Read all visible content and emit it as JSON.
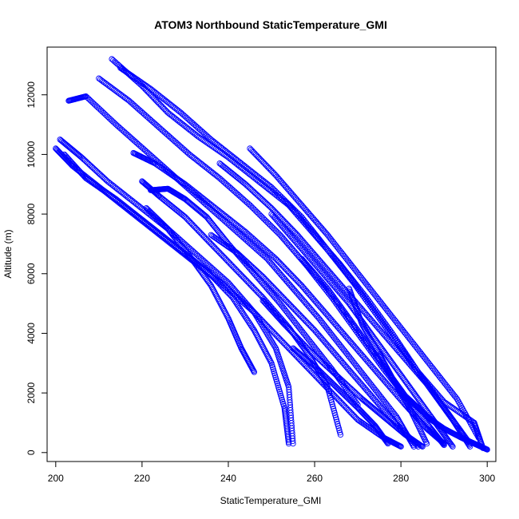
{
  "chart_data": {
    "type": "scatter",
    "title": "ATOM3 Northbound StaticTemperature_GMI",
    "xlabel": "StaticTemperature_GMI",
    "ylabel": "Altitude (m)",
    "xlim": [
      198,
      302
    ],
    "ylim": [
      -300,
      13600
    ],
    "xticks": [
      200,
      220,
      240,
      260,
      280,
      300
    ],
    "yticks": [
      0,
      2000,
      4000,
      6000,
      8000,
      10000,
      12000
    ],
    "marker": "open-circle",
    "grid": false,
    "legend": "none",
    "colors": {
      "points": "#0000ff"
    },
    "series": [
      {
        "x": [
          213,
          220,
          226,
          233,
          240,
          247,
          254,
          260,
          266,
          272,
          278,
          284,
          290,
          297,
          299
        ],
        "y": [
          13200,
          12300,
          11400,
          10600,
          9900,
          9100,
          8300,
          7300,
          6300,
          5200,
          4000,
          2700,
          1700,
          1000,
          150
        ]
      },
      {
        "x": [
          215,
          222,
          229,
          236,
          243,
          250,
          257,
          263,
          269,
          275,
          281,
          287,
          292,
          296
        ],
        "y": [
          12900,
          12200,
          11400,
          10500,
          9700,
          8900,
          7900,
          6800,
          5700,
          4500,
          3300,
          2100,
          1100,
          200
        ]
      },
      {
        "x": [
          210,
          217,
          224,
          231,
          238,
          245,
          252,
          258,
          264,
          270,
          276,
          282,
          287,
          290
        ],
        "y": [
          12550,
          11800,
          10900,
          10000,
          9200,
          8300,
          7300,
          6300,
          5200,
          4000,
          2800,
          1700,
          800,
          250
        ]
      },
      {
        "x": [
          203,
          207,
          214,
          221,
          228,
          235,
          242,
          249,
          255,
          261,
          267,
          273,
          279,
          283
        ],
        "y": [
          11800,
          11950,
          11000,
          10100,
          9200,
          8300,
          7400,
          6500,
          5500,
          4500,
          3400,
          2300,
          1200,
          200
        ]
      },
      {
        "x": [
          200,
          204,
          211,
          218,
          225,
          232,
          239,
          246,
          252,
          258,
          264,
          270,
          276,
          280
        ],
        "y": [
          10200,
          9600,
          8800,
          8000,
          7200,
          6400,
          5600,
          4700,
          3800,
          2900,
          2000,
          1100,
          500,
          200
        ]
      },
      {
        "x": [
          201,
          206,
          212,
          219,
          226,
          233,
          240,
          246,
          251,
          254,
          255
        ],
        "y": [
          10500,
          9900,
          9100,
          8300,
          7500,
          6600,
          5700,
          4700,
          3500,
          2200,
          300
        ]
      },
      {
        "x": [
          202,
          207,
          214,
          221,
          228,
          235,
          241,
          246,
          250,
          253,
          254
        ],
        "y": [
          10000,
          9200,
          8500,
          7700,
          6900,
          6100,
          5200,
          4100,
          3000,
          1500,
          300
        ]
      },
      {
        "x": [
          218,
          223,
          230,
          237,
          244,
          251,
          257,
          263,
          269,
          275,
          281,
          286,
          290
        ],
        "y": [
          10050,
          9700,
          9000,
          8200,
          7400,
          6500,
          5600,
          4600,
          3600,
          2600,
          1600,
          800,
          300
        ]
      },
      {
        "x": [
          220,
          224,
          230,
          236,
          242,
          248,
          254,
          259,
          263,
          266
        ],
        "y": [
          9100,
          8600,
          7900,
          7000,
          6100,
          5200,
          4200,
          3200,
          2200,
          600
        ]
      },
      {
        "x": [
          221,
          226,
          231,
          236,
          240,
          243,
          246
        ],
        "y": [
          8200,
          7500,
          6600,
          5600,
          4500,
          3500,
          2700
        ]
      },
      {
        "x": [
          236,
          242,
          248,
          254,
          260,
          266,
          272,
          278,
          284
        ],
        "y": [
          7300,
          6700,
          5900,
          5000,
          4100,
          3100,
          2100,
          1100,
          200
        ]
      },
      {
        "x": [
          222,
          226,
          230,
          235,
          240,
          246,
          252,
          258,
          264,
          270
        ],
        "y": [
          8800,
          8850,
          8500,
          7900,
          7000,
          6000,
          5000,
          3900,
          2800,
          1600
        ]
      },
      {
        "x": [
          238,
          244,
          250,
          256,
          262,
          268,
          274,
          280,
          286,
          291,
          296
        ],
        "y": [
          9700,
          9000,
          8200,
          7300,
          6300,
          5300,
          4300,
          3300,
          2300,
          1300,
          300
        ]
      },
      {
        "x": [
          245,
          251,
          257,
          263,
          269,
          275,
          281,
          287,
          293,
          298
        ],
        "y": [
          10200,
          9300,
          8300,
          7300,
          6200,
          5100,
          4000,
          2900,
          1800,
          500
        ]
      },
      {
        "x": [
          250,
          256,
          262,
          268,
          273,
          278,
          283,
          288,
          292
        ],
        "y": [
          8000,
          7000,
          6000,
          5000,
          4000,
          3000,
          2000,
          1000,
          200
        ]
      },
      {
        "x": [
          257,
          263,
          268,
          273,
          278,
          282,
          286
        ],
        "y": [
          6500,
          5500,
          4500,
          3500,
          2500,
          1500,
          300
        ]
      },
      {
        "x": [
          268,
          271,
          275,
          278,
          281,
          284,
          287,
          290,
          294,
          297,
          300
        ],
        "y": [
          5500,
          4300,
          3300,
          2500,
          1900,
          1500,
          1100,
          800,
          500,
          300,
          100
        ]
      },
      {
        "x": [
          248,
          253,
          259,
          265,
          271,
          276,
          281,
          285
        ],
        "y": [
          5100,
          4300,
          3400,
          2600,
          1800,
          1200,
          600,
          200
        ]
      },
      {
        "x": [
          255,
          260,
          265,
          270,
          274,
          277
        ],
        "y": [
          3500,
          2900,
          2200,
          1500,
          900,
          300
        ]
      }
    ]
  }
}
